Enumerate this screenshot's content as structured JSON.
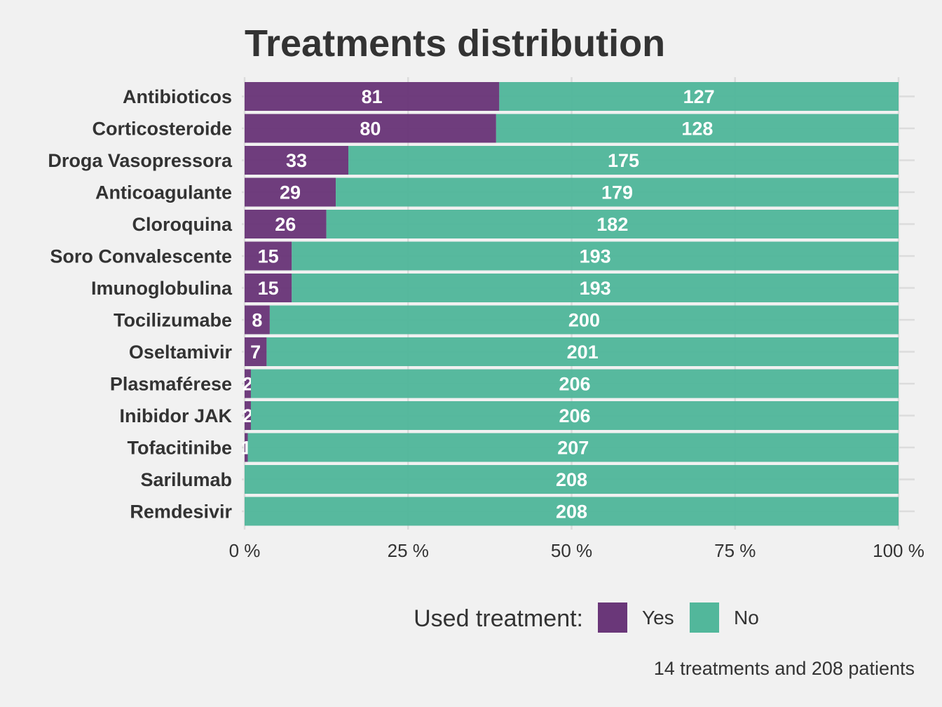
{
  "chart_data": {
    "type": "bar",
    "orientation": "horizontal",
    "stacked": "percent",
    "title": "Treatments distribution",
    "categories": [
      "Antibioticos",
      "Corticosteroide",
      "Droga Vasopressora",
      "Anticoagulante",
      "Cloroquina",
      "Soro Convalescente",
      "Imunoglobulina",
      "Tocilizumabe",
      "Oseltamivir",
      "Plasmaférese",
      "Inibidor JAK",
      "Tofacitinibe",
      "Sarilumab",
      "Remdesivir"
    ],
    "series": [
      {
        "name": "Yes",
        "color": "#6a3779",
        "values": [
          81,
          80,
          33,
          29,
          26,
          15,
          15,
          8,
          7,
          2,
          2,
          1,
          0,
          0
        ]
      },
      {
        "name": "No",
        "color": "#52b79b",
        "values": [
          127,
          128,
          175,
          179,
          182,
          193,
          193,
          200,
          201,
          206,
          206,
          207,
          208,
          208
        ]
      }
    ],
    "xticks": [
      "0 %",
      "25 %",
      "50 %",
      "75 %",
      "100 %"
    ],
    "xlim": [
      0,
      100
    ],
    "grid": true,
    "legend_position": "bottom",
    "legend_title": "Used treatment:",
    "caption": "14 treatments and 208 patients"
  }
}
